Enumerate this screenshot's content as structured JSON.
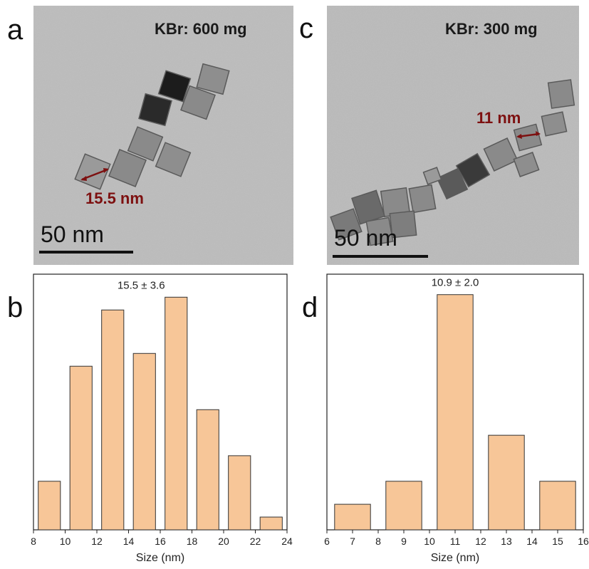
{
  "panels": {
    "a": {
      "letter": "a",
      "label": "KBr: 600 mg",
      "size_label": "15.5 nm",
      "scale_label": "50 nm"
    },
    "b": {
      "letter": "b",
      "stat": "15.5 ± 3.6"
    },
    "c": {
      "letter": "c",
      "label": "KBr: 300 mg",
      "size_label": "11 nm",
      "scale_label": "50 nm"
    },
    "d": {
      "letter": "d",
      "stat": "10.9 ± 2.0"
    }
  },
  "chart_data": [
    {
      "type": "bar",
      "panel": "b",
      "xlabel": "Size (nm)",
      "xlim": [
        8,
        24
      ],
      "xticks": [
        8,
        10,
        12,
        14,
        16,
        18,
        20,
        22,
        24
      ],
      "bin_width": 1.4,
      "x": [
        9,
        11,
        13,
        15,
        17,
        19,
        21,
        23
      ],
      "values": [
        0.19,
        0.64,
        0.86,
        0.69,
        0.91,
        0.47,
        0.29,
        0.05
      ],
      "annotation": "15.5 ± 3.6"
    },
    {
      "type": "bar",
      "panel": "d",
      "xlabel": "Size (nm)",
      "xlim": [
        6,
        16
      ],
      "xticks": [
        6,
        7,
        8,
        9,
        10,
        11,
        12,
        13,
        14,
        15,
        16
      ],
      "tick_labels": [
        "6",
        "7",
        "8",
        "9",
        "10",
        "11",
        "12",
        "13",
        "14",
        "15",
        "16"
      ],
      "bin_width": 1.4,
      "x": [
        7,
        9,
        11,
        13,
        15
      ],
      "values": [
        0.1,
        0.19,
        0.92,
        0.37,
        0.19
      ],
      "annotation": "10.9 ± 2.0"
    }
  ]
}
